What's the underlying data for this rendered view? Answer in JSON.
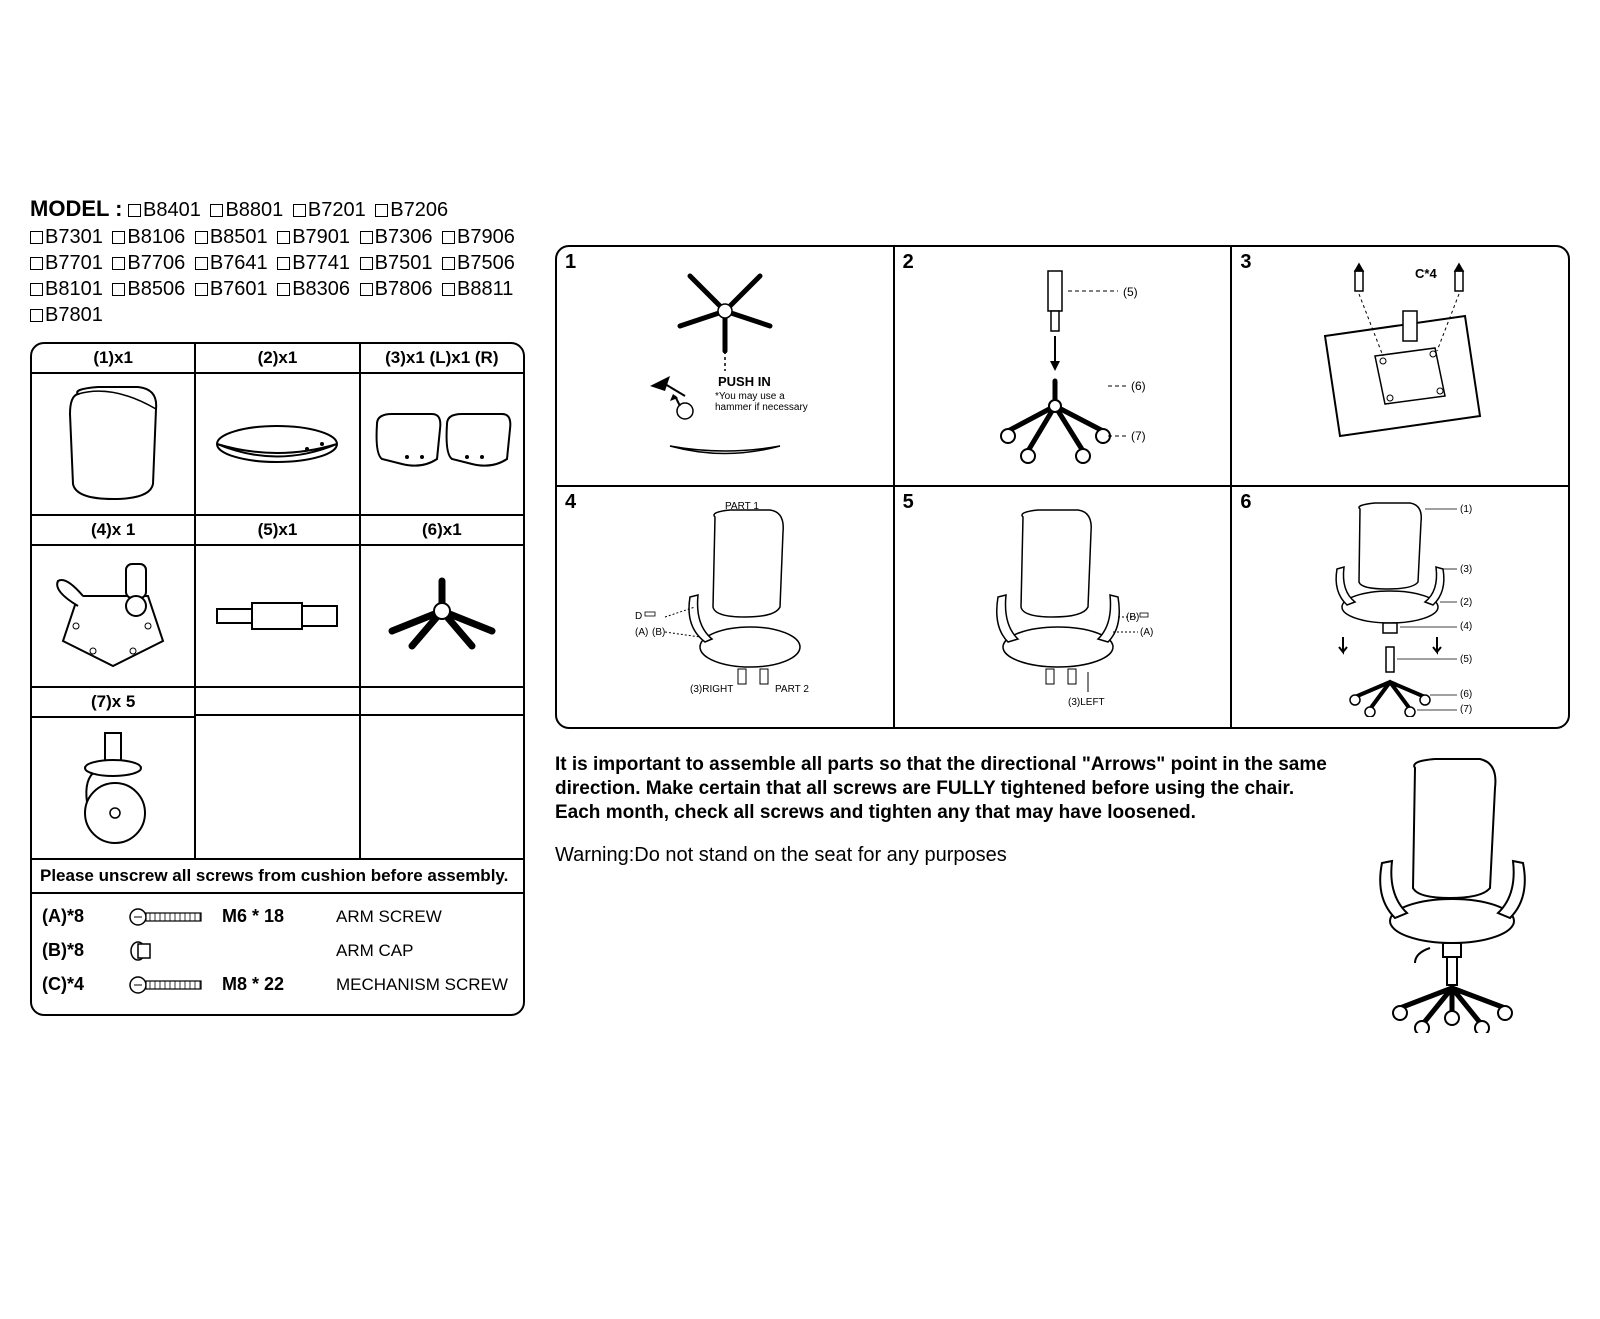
{
  "model": {
    "label": "MODEL :",
    "items": [
      "B8401",
      "B8801",
      "B7201",
      "B7206",
      "B7301",
      "B8106",
      "B8501",
      "B7901",
      "B7306",
      "B7906",
      "B7701",
      "B7706",
      "B7641",
      "B7741",
      "B7501",
      "B7506",
      "B8101",
      "B8506",
      "B7601",
      "B8306",
      "B7806",
      "B8811",
      "B7801"
    ]
  },
  "parts": {
    "cells": [
      {
        "label": "(1)x1",
        "desc": "backrest"
      },
      {
        "label": "(2)x1",
        "desc": "seat"
      },
      {
        "label": "(3)x1 (L)x1 (R)",
        "desc": "armrests"
      },
      {
        "label": "(4)x 1",
        "desc": "mechanism"
      },
      {
        "label": "(5)x1",
        "desc": "gas-lift"
      },
      {
        "label": "(6)x1",
        "desc": "base"
      },
      {
        "label": "(7)x 5",
        "desc": "caster"
      }
    ]
  },
  "hardware": {
    "note": "Please unscrew all screws from cushion before assembly.",
    "rows": [
      {
        "qty": "(A)*8",
        "spec": "M6 * 18",
        "name": "ARM SCREW",
        "icon": "screw"
      },
      {
        "qty": "(B)*8",
        "spec": "",
        "name": "ARM CAP",
        "icon": "cap"
      },
      {
        "qty": "(C)*4",
        "spec": "M8 * 22",
        "name": "MECHANISM SCREW",
        "icon": "screw"
      }
    ]
  },
  "steps": {
    "s1": {
      "num": "1",
      "push": "PUSH IN",
      "note": "*You may use a hammer if necessary"
    },
    "s2": {
      "num": "2",
      "r5": "(5)",
      "r6": "(6)",
      "r7": "(7)"
    },
    "s3": {
      "num": "3",
      "label": "C*4"
    },
    "s4": {
      "num": "4",
      "part1": "PART 1",
      "part2": "PART 2",
      "a": "(A)",
      "b": "(B)",
      "right": "(3)RIGHT",
      "d": "D"
    },
    "s5": {
      "num": "5",
      "a": "(A)",
      "b": "(B)",
      "left": "(3)LEFT"
    },
    "s6": {
      "num": "6",
      "r1": "(1)",
      "r2": "(2)",
      "r3": "(3)",
      "r4": "(4)",
      "r5": "(5)",
      "r6": "(6)",
      "r7": "(7)"
    }
  },
  "footer": {
    "bold": "It is important to assemble all parts so that the directional \"Arrows\" point in the same direction. Make certain that all screws are FULLY tightened before using the chair. Each month, check all screws and tighten any that may have loosened.",
    "warning": "Warning:Do not stand on the seat for any purposes"
  },
  "colors": {
    "stroke": "#000000",
    "bg": "#ffffff"
  }
}
